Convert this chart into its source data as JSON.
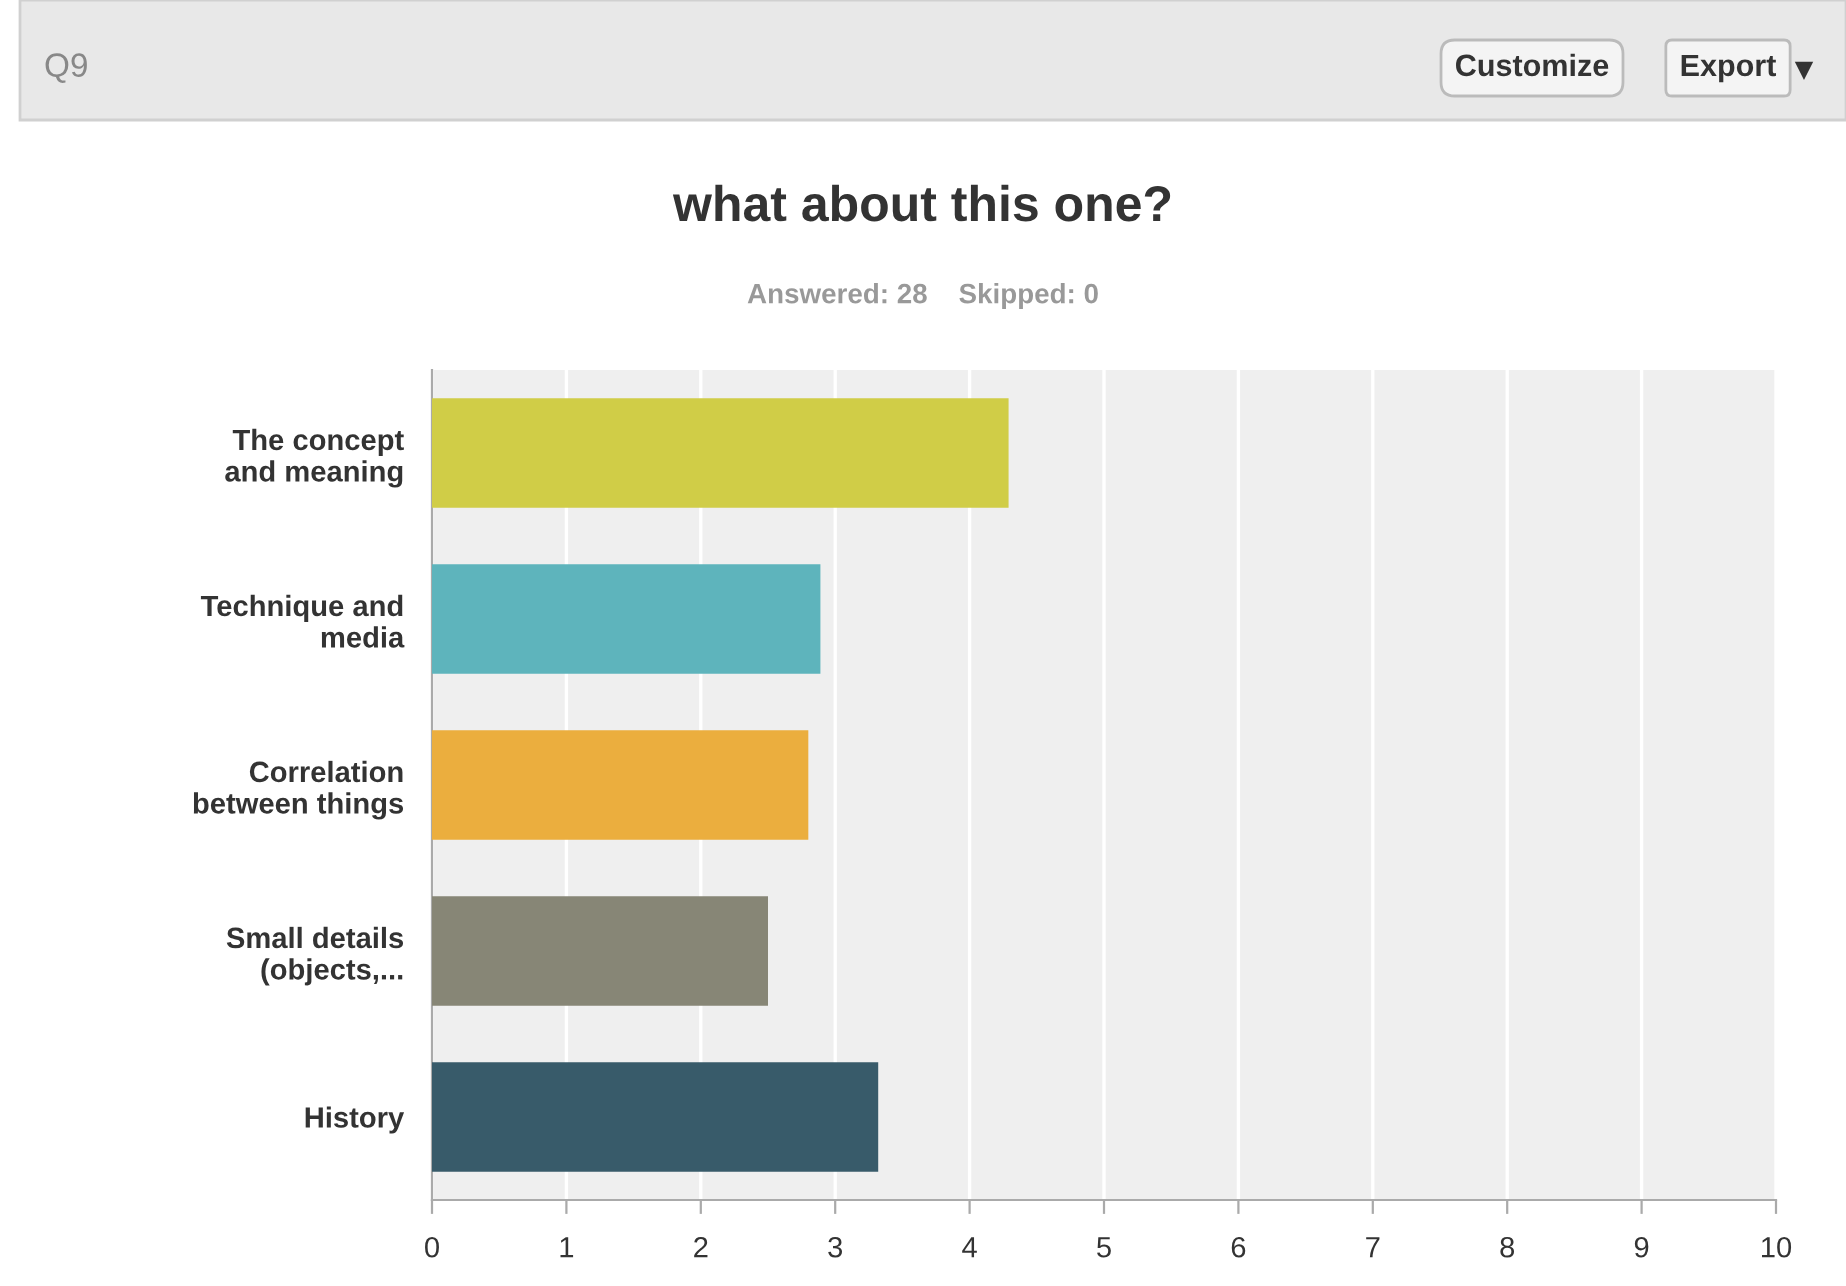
{
  "chart_data": {
    "type": "bar",
    "orientation": "horizontal",
    "title": "what about this one?",
    "subtitle": "Answered: 28    Skipped: 0",
    "categories": [
      "The concept\nand meaning",
      "Technique and\nmedia",
      "Correlation\nbetween things",
      "Small details\n(objects,...",
      "History"
    ],
    "values": [
      4.29,
      2.89,
      2.8,
      2.5,
      3.32
    ],
    "colors": [
      "#d0cd47",
      "#5eb4bc",
      "#ebae3e",
      "#878676",
      "#385b6a"
    ],
    "xlim": [
      0,
      10
    ],
    "xticks": [
      0,
      1,
      2,
      3,
      4,
      5,
      6,
      7,
      8,
      9,
      10
    ],
    "grid": "x",
    "annotations": [
      "Q9",
      "Customize",
      "Export"
    ]
  }
}
